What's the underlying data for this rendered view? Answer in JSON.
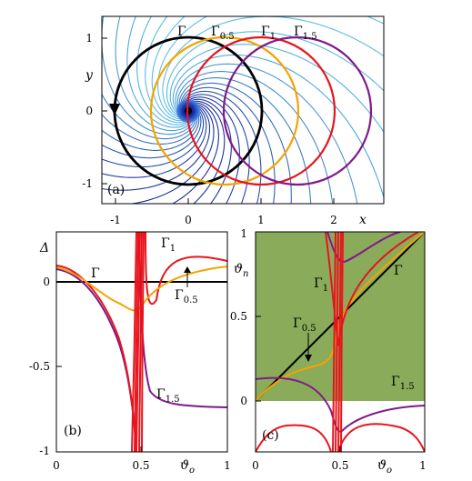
{
  "figure": {
    "panel_a": {
      "tag": "(a)",
      "x_label": "x",
      "y_label": "y",
      "x_ticks": [
        "-1",
        "0",
        "1",
        "2"
      ],
      "y_ticks": [
        "1",
        "0",
        "-1"
      ],
      "curve_labels": [
        {
          "base": "Γ",
          "sub": ""
        },
        {
          "base": "Γ",
          "sub": "0.5"
        },
        {
          "base": "Γ",
          "sub": "1"
        },
        {
          "base": "Γ",
          "sub": "1.5"
        }
      ]
    },
    "panel_b": {
      "tag": "(b)",
      "y_label": "Δ",
      "x_label": "ϑ",
      "x_label_sub": "o",
      "x_ticks": [
        "0",
        "0.5",
        "1"
      ],
      "y_ticks": [
        "0",
        "-0.5",
        "-1"
      ],
      "curve_labels": [
        {
          "base": "Γ",
          "sub": ""
        },
        {
          "base": "Γ",
          "sub": "1"
        },
        {
          "base": "Γ",
          "sub": "0.5"
        },
        {
          "base": "Γ",
          "sub": "1.5"
        }
      ]
    },
    "panel_c": {
      "tag": "(c)",
      "y_label": "ϑ",
      "y_label_sub": "n",
      "x_label": "ϑ",
      "x_label_sub": "o",
      "x_ticks": [
        "0",
        "0.5",
        "1"
      ],
      "y_ticks": [
        "1",
        "0.5",
        "0"
      ],
      "curve_labels": [
        {
          "base": "Γ",
          "sub": ""
        },
        {
          "base": "Γ",
          "sub": "1"
        },
        {
          "base": "Γ",
          "sub": "0.5"
        },
        {
          "base": "Γ",
          "sub": "1.5"
        }
      ]
    },
    "colors": {
      "gamma": "#000000",
      "gamma_0_5": "#f5a300",
      "gamma_1": "#e8141c",
      "gamma_1_5": "#7f1a8a",
      "green_fill": "#8aab5a",
      "field_dark": "#1a2f9e",
      "field_light": "#5bc0e8"
    }
  }
}
